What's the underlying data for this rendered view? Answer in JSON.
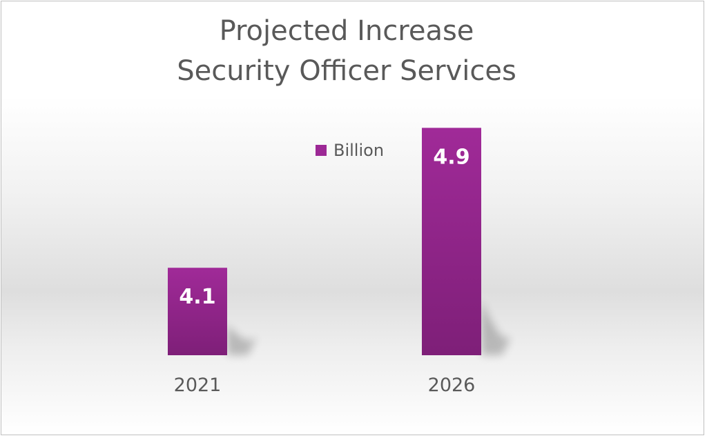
{
  "chart_data": {
    "type": "bar",
    "title": [
      "Projected Increase",
      "Security Officer Services"
    ],
    "categories": [
      "2021",
      "2026"
    ],
    "series": [
      {
        "name": "Billion",
        "values": [
          4.1,
          4.9
        ]
      }
    ],
    "xlabel": "",
    "ylabel": "",
    "ylim": [
      3.6,
      5.0
    ],
    "grid": false,
    "legend_position": "top-center",
    "data_labels": [
      "4.1",
      "4.9"
    ],
    "colors": {
      "bar": "#9c2895",
      "bar_dark": "#7c1f77",
      "label": "#ffffff",
      "text": "#595959"
    }
  }
}
